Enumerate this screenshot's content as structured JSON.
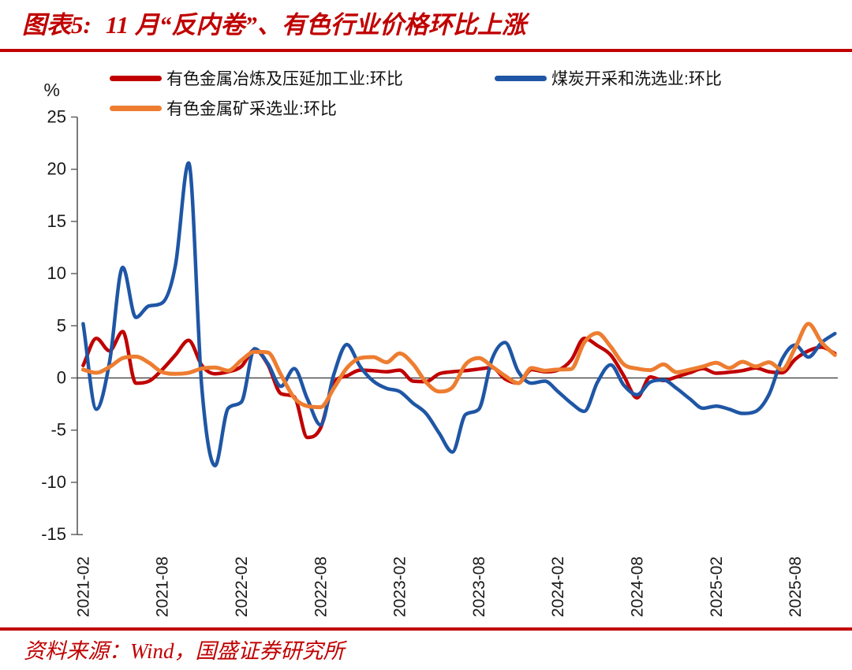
{
  "title": {
    "prefix": "图表5:",
    "text": "11 月“反内卷”、有色行业价格环比上涨"
  },
  "legend": [
    {
      "label": "有色金属冶炼及压延加工业:环比",
      "color": "#c00000"
    },
    {
      "label": "煤炭开采和洗选业:环比",
      "color": "#1f56a5"
    },
    {
      "label": "有色金属矿采选业:环比",
      "color": "#ed7d31"
    }
  ],
  "source_note": "资料来源：Wind，国盛证券研究所",
  "accent_color": "#c00000",
  "chart_data": {
    "type": "line",
    "title": "11 月“反内卷”、有色行业价格环比上涨",
    "ylabel": "%",
    "ylim": [
      -15,
      25
    ],
    "y_tick_step": 5,
    "y_tick_labels": [
      "25",
      "20",
      "15",
      "10",
      "5",
      "0",
      "-5",
      "-10",
      "-15"
    ],
    "x_start": "2021-02",
    "x_end": "2025-11",
    "x_frequency": "monthly",
    "x_tick_labels": [
      "2021-02",
      "2021-08",
      "2022-02",
      "2022-08",
      "2023-02",
      "2023-08",
      "2024-02",
      "2024-08",
      "2025-02",
      "2025-08"
    ],
    "x_tick_every": 6,
    "grid": false,
    "legend_position": "top",
    "series": [
      {
        "name": "有色金属冶炼及压延加工业:环比",
        "color": "#c00000",
        "values": [
          1.2,
          3.8,
          2.6,
          4.45,
          -0.5,
          -0.3,
          0.8,
          2.2,
          3.6,
          1.2,
          0.4,
          0.6,
          1.1,
          2.7,
          1.3,
          -1.5,
          -1.8,
          -5.7,
          -4.8,
          -0.5,
          0.2,
          0.75,
          0.7,
          0.6,
          0.75,
          -0.3,
          -0.35,
          0.4,
          0.6,
          0.7,
          0.85,
          1.0,
          -0.1,
          -0.5,
          0.8,
          0.6,
          0.75,
          1.7,
          3.8,
          3.1,
          2.2,
          0.2,
          -1.9,
          0.1,
          -0.25,
          0.1,
          0.5,
          0.9,
          0.45,
          0.55,
          0.7,
          0.95,
          0.6,
          0.5,
          1.8,
          2.6,
          2.95,
          2.35
        ]
      },
      {
        "name": "煤炭开采和洗选业:环比",
        "color": "#1f56a5",
        "values": [
          5.2,
          -3.0,
          1.5,
          10.6,
          5.8,
          6.9,
          7.2,
          10.8,
          20.6,
          -1.0,
          -8.4,
          -2.9,
          -2.3,
          2.8,
          1.4,
          -0.8,
          0.9,
          -2.0,
          -4.5,
          0.3,
          3.2,
          1.1,
          -0.3,
          -1.0,
          -1.3,
          -2.4,
          -3.4,
          -5.3,
          -7.1,
          -3.5,
          -3.0,
          1.8,
          3.4,
          0.6,
          -0.5,
          -0.3,
          -1.3,
          -2.4,
          -3.2,
          -0.4,
          1.25,
          -0.7,
          -1.6,
          -0.4,
          -0.2,
          -1.0,
          -2.0,
          -2.9,
          -2.7,
          -3.0,
          -3.4,
          -3.2,
          -1.6,
          1.8,
          3.15,
          2.0,
          3.4,
          4.25
        ]
      },
      {
        "name": "有色金属矿采选业:环比",
        "color": "#ed7d31",
        "values": [
          0.8,
          0.5,
          1.05,
          1.9,
          2.05,
          1.45,
          0.55,
          0.4,
          0.5,
          0.9,
          1.0,
          0.7,
          1.7,
          2.5,
          2.45,
          0.3,
          -1.9,
          -2.7,
          -2.8,
          -1.0,
          0.95,
          1.9,
          2.0,
          1.5,
          2.35,
          1.35,
          -0.4,
          -1.3,
          -0.9,
          1.3,
          1.9,
          1.1,
          0.2,
          -0.5,
          0.95,
          0.7,
          0.8,
          0.85,
          3.4,
          4.3,
          3.0,
          1.3,
          0.9,
          0.75,
          1.3,
          0.55,
          0.8,
          1.1,
          1.45,
          0.95,
          1.55,
          1.1,
          1.5,
          0.8,
          2.9,
          5.2,
          3.4,
          2.2
        ]
      }
    ]
  }
}
